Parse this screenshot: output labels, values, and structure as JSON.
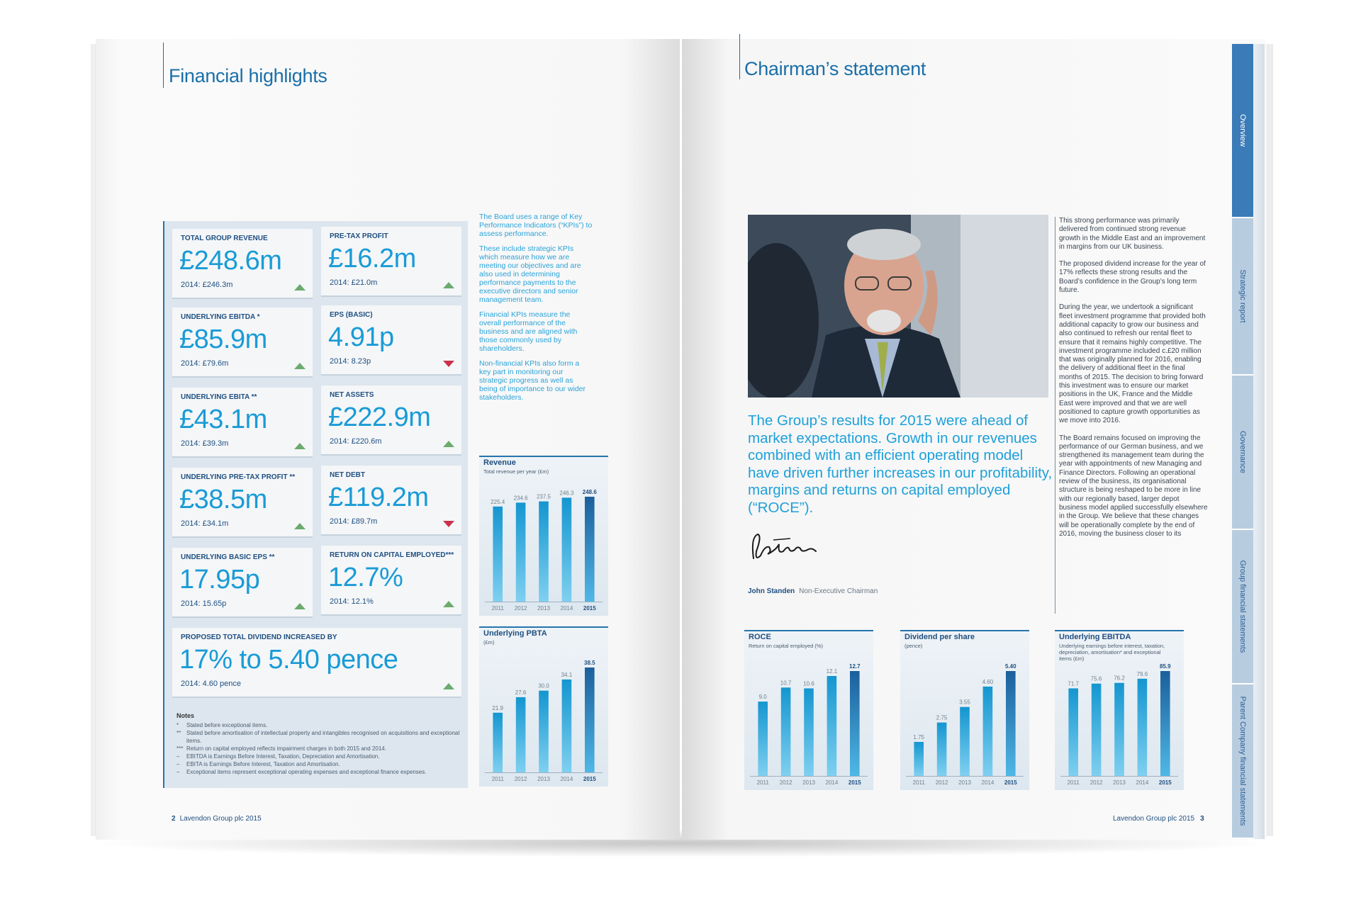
{
  "left_page": {
    "title": "Financial highlights",
    "kpis": [
      {
        "label": "TOTAL GROUP REVENUE",
        "value": "£248.6m",
        "prev": "2014: £246.3m",
        "trend": "up"
      },
      {
        "label": "PRE-TAX PROFIT",
        "value": "£16.2m",
        "prev": "2014: £21.0m",
        "trend": "up"
      },
      {
        "label": "UNDERLYING EBITDA *",
        "value": "£85.9m",
        "prev": "2014: £79.6m",
        "trend": "up"
      },
      {
        "label": "EPS (BASIC)",
        "value": "4.91p",
        "prev": "2014: 8.23p",
        "trend": "down"
      },
      {
        "label": "UNDERLYING EBITA **",
        "value": "£43.1m",
        "prev": "2014: £39.3m",
        "trend": "up"
      },
      {
        "label": "NET ASSETS",
        "value": "£222.9m",
        "prev": "2014: £220.6m",
        "trend": "up"
      },
      {
        "label": "UNDERLYING PRE-TAX PROFIT **",
        "value": "£38.5m",
        "prev": "2014: £34.1m",
        "trend": "up"
      },
      {
        "label": "NET DEBT",
        "value": "£119.2m",
        "prev": "2014: £89.7m",
        "trend": "down"
      },
      {
        "label": "UNDERLYING BASIC EPS **",
        "value": "17.95p",
        "prev": "2014: 15.65p",
        "trend": "up"
      },
      {
        "label": "RETURN ON CAPITAL EMPLOYED***",
        "value": "12.7%",
        "prev": "2014: 12.1%",
        "trend": "up"
      }
    ],
    "dividend": {
      "label": "PROPOSED TOTAL DIVIDEND INCREASED BY",
      "value": "17% to 5.40 pence",
      "prev": "2014: 4.60 pence",
      "trend": "up"
    },
    "notes": {
      "title": "Notes",
      "items": [
        {
          "mark": "*",
          "text": "Stated before exceptional items."
        },
        {
          "mark": "**",
          "text": "Stated before amortisation of intellectual property and intangibles recognised on acquisitions and exceptional items."
        },
        {
          "mark": "***",
          "text": "Return on capital employed reflects impairment charges in both 2015 and 2014."
        },
        {
          "mark": "–",
          "text": "EBITDA is Earnings Before Interest, Taxation, Depreciation and Amortisation."
        },
        {
          "mark": "–",
          "text": "EBITA is Earnings Before Interest, Taxation and Amortisation."
        },
        {
          "mark": "–",
          "text": "Exceptional items represent exceptional operating expenses and exceptional finance expenses."
        }
      ]
    },
    "intro": [
      "The Board uses a range of Key Performance Indicators (“KPIs”) to assess performance.",
      "These include strategic KPIs which measure how we are meeting our objectives and are also used in determining performance payments to the executive directors and senior management team.",
      "Financial KPIs measure the overall performance of the business and are aligned with those commonly used by shareholders.",
      "Non-financial KPIs also form a key part in monitoring our strategic progress as well as being of importance to our wider stakeholders."
    ],
    "folio": {
      "num": "2",
      "text": "Lavendon Group plc 2015"
    }
  },
  "right_page": {
    "title": "Chairman’s statement",
    "quote": "The Group’s results for 2015 were ahead of market expectations. Growth in our revenues combined with an efficient operating model have driven further increases in our profitability, margins and returns on capital employed (“ROCE”).",
    "signatory_name": "John Standen",
    "signatory_role": "Non-Executive Chairman",
    "body": [
      "This strong performance was primarily delivered from continued strong revenue growth in the Middle East and an improvement in margins from our UK business.",
      "The proposed dividend increase for the year of 17% reflects these strong results and the Board’s confidence in the Group’s long term future.",
      "During the year, we undertook a significant fleet investment programme that provided both additional capacity to grow our business and also continued to refresh our rental fleet to ensure that it remains highly competitive. The investment programme included c.£20 million that was originally planned for 2016, enabling the delivery of additional fleet in the final months of 2015. The decision to bring forward this investment was to ensure our market positions in the UK, France and the Middle East were improved and that we are well positioned to capture growth opportunities as we move into 2016.",
      "The Board remains focused on improving the performance of our German business, and we strengthened its management team during the year with appointments of new Managing and Finance Directors. Following an operational review of the business, its organisational structure is being reshaped to be more in line with our regionally based, larger depot business model applied successfully elsewhere in the Group. We believe that these changes will be operationally complete by the end of 2016, moving the business closer to its"
    ],
    "tabs": [
      {
        "label": "Overview",
        "active": true
      },
      {
        "label": "Strategic report",
        "active": false
      },
      {
        "label": "Governance",
        "active": false
      },
      {
        "label": "Group financial statements",
        "active": false
      },
      {
        "label": "Parent Company financial statements",
        "active": false
      }
    ],
    "folio": {
      "num": "3",
      "text": "Lavendon Group plc 2015"
    }
  },
  "colors": {
    "accent": "#199bd6",
    "navy": "#1f4f80",
    "up": "#6bab6e",
    "down": "#c8334a"
  },
  "chart_data": [
    {
      "id": "revenue",
      "type": "bar",
      "title": "Revenue",
      "subtitle": "Total revenue per year (£m)",
      "categories": [
        "2011",
        "2012",
        "2013",
        "2014",
        "2015"
      ],
      "values": [
        225.4,
        234.6,
        237.5,
        246.3,
        248.6
      ],
      "labels": [
        "225.4",
        "234.6",
        "237.5",
        "246.3",
        "248.6"
      ],
      "highlight_last": true
    },
    {
      "id": "pbta",
      "type": "bar",
      "title": "Underlying PBTA",
      "subtitle": "(£m)",
      "categories": [
        "2011",
        "2012",
        "2013",
        "2014",
        "2015"
      ],
      "values": [
        21.9,
        27.6,
        30.0,
        34.1,
        38.5
      ],
      "labels": [
        "21.9",
        "27.6",
        "30.0",
        "34.1",
        "38.5"
      ],
      "highlight_last": true
    },
    {
      "id": "roce",
      "type": "bar",
      "title": "ROCE",
      "subtitle": "Return on capital employed (%)",
      "categories": [
        "2011",
        "2012",
        "2013",
        "2014",
        "2015"
      ],
      "values": [
        9.0,
        10.7,
        10.6,
        12.1,
        12.7
      ],
      "labels": [
        "9.0",
        "10.7",
        "10.6",
        "12.1",
        "12.7"
      ],
      "highlight_last": true
    },
    {
      "id": "dps",
      "type": "bar",
      "title": "Dividend per share",
      "subtitle": "(pence)",
      "categories": [
        "2011",
        "2012",
        "2013",
        "2014",
        "2015"
      ],
      "values": [
        1.75,
        2.75,
        3.55,
        4.6,
        5.4
      ],
      "labels": [
        "1.75",
        "2.75",
        "3.55",
        "4.60",
        "5.40"
      ],
      "highlight_last": true
    },
    {
      "id": "ebitda",
      "type": "bar",
      "title": "Underlying EBITDA",
      "subtitle": "Underlying earnings before interest, taxation, depreciation, amortisation* and exceptional items (£m)",
      "categories": [
        "2011",
        "2012",
        "2013",
        "2014",
        "2015"
      ],
      "values": [
        71.7,
        75.6,
        76.2,
        79.6,
        85.9
      ],
      "labels": [
        "71.7",
        "75.6",
        "76.2",
        "79.6",
        "85.9"
      ],
      "highlight_last": true
    }
  ]
}
